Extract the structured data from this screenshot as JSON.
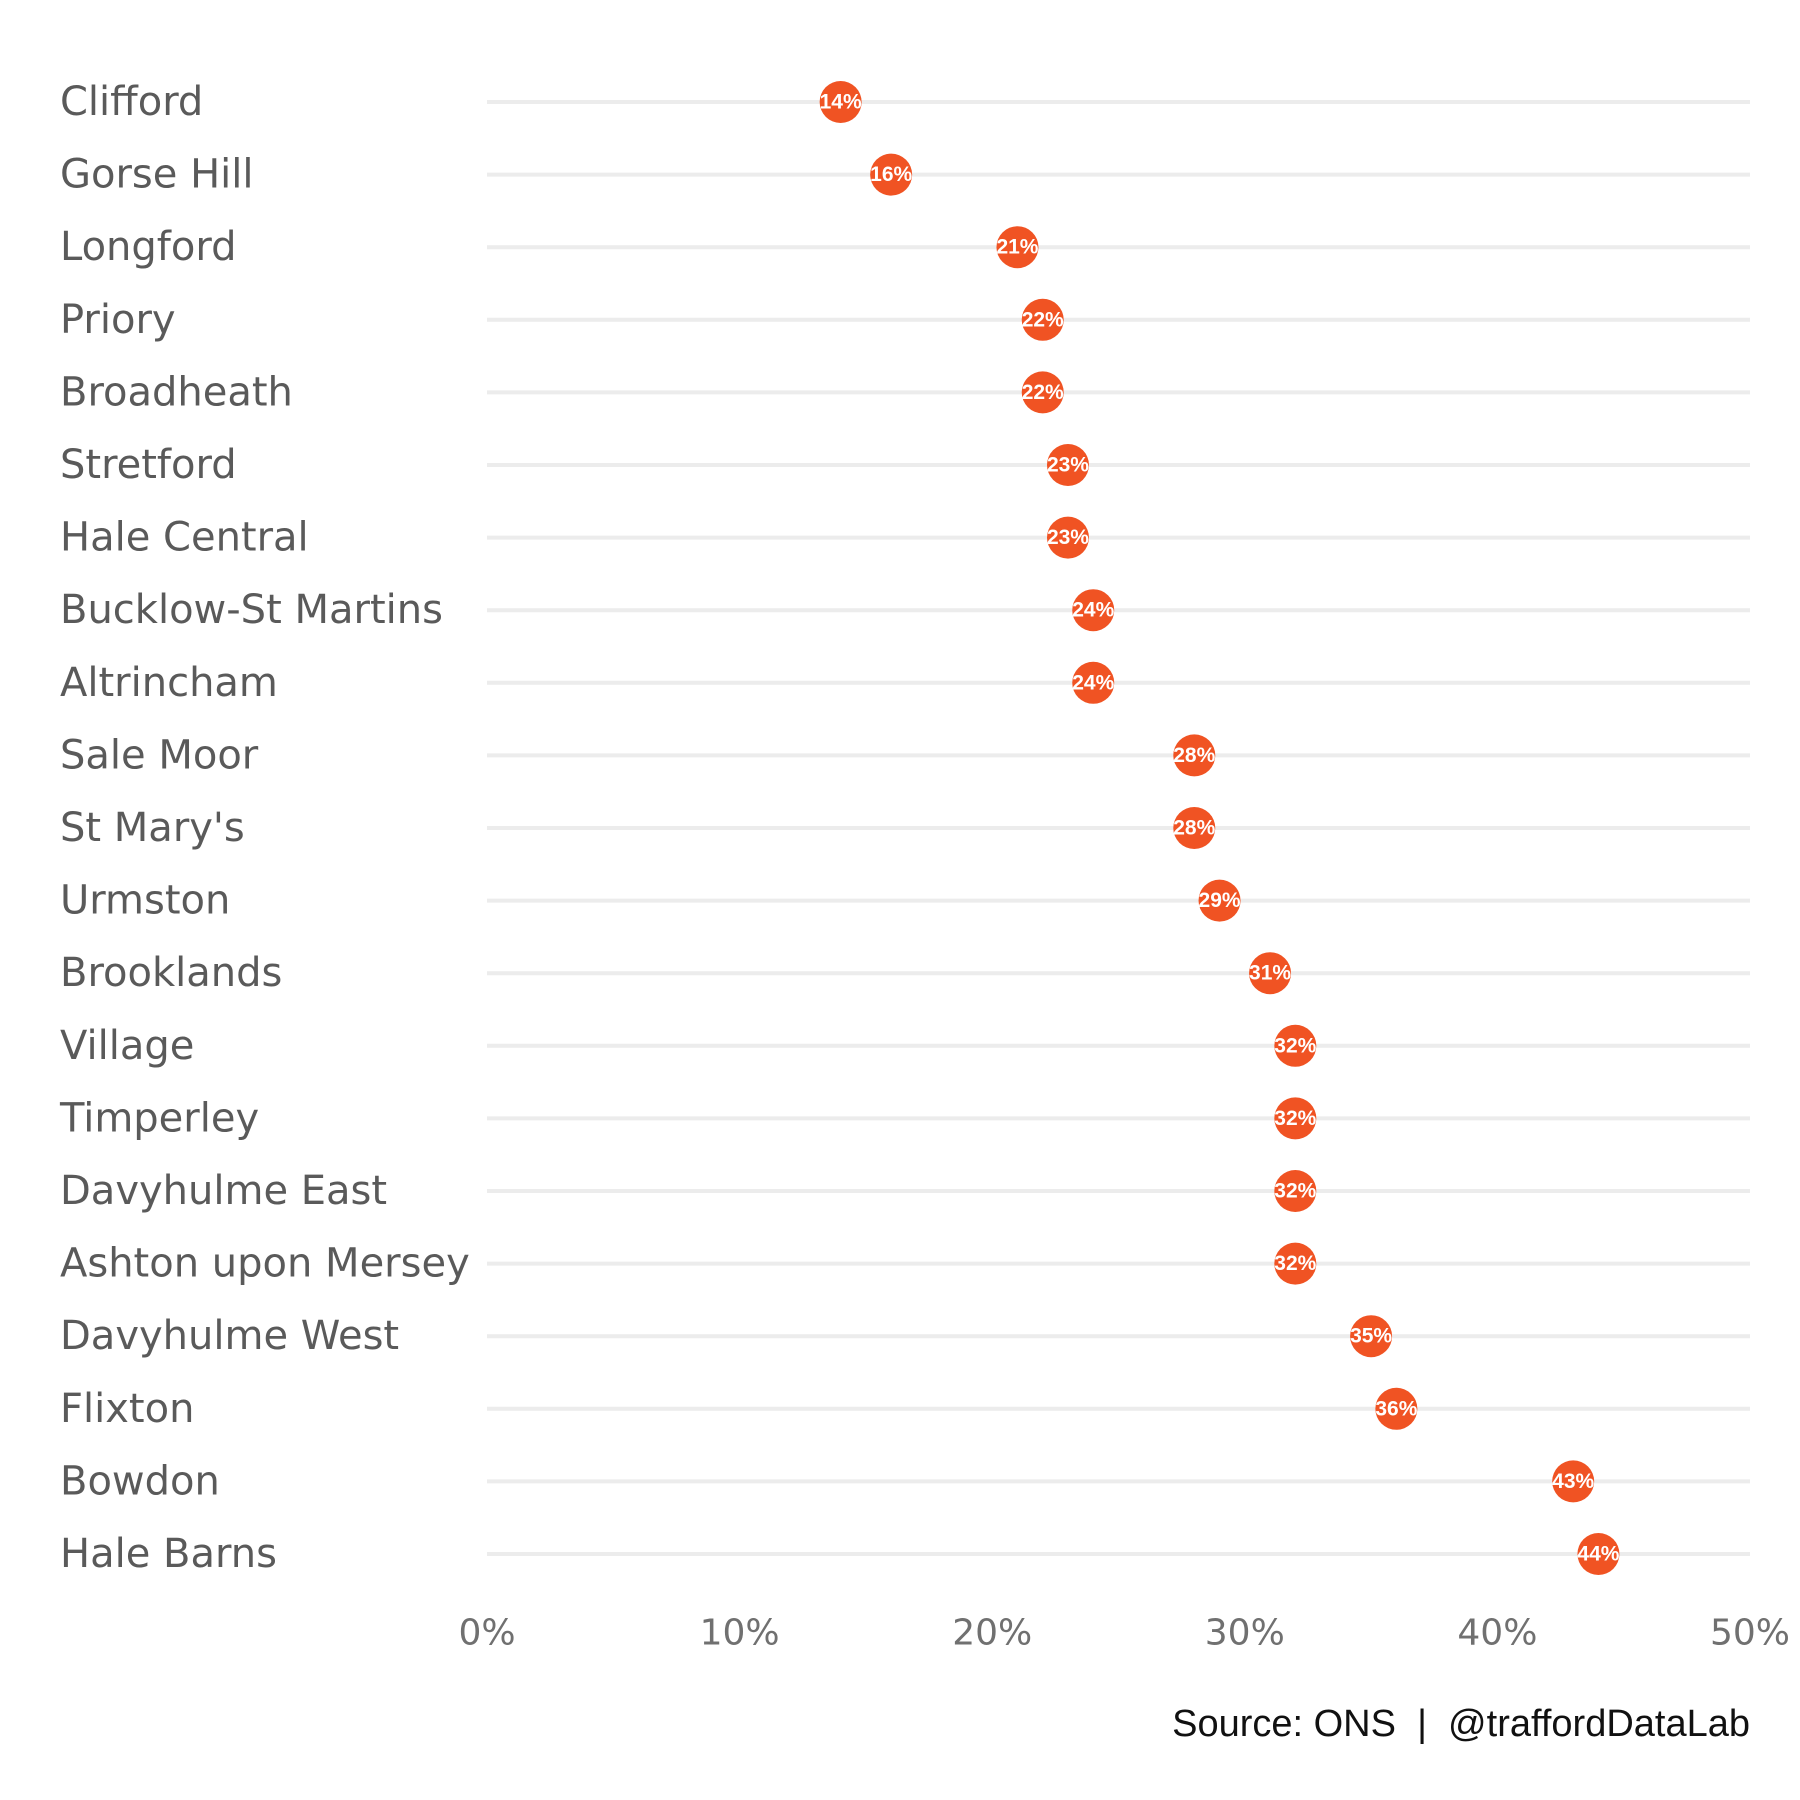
{
  "chart_data": {
    "type": "lollipop",
    "orientation": "horizontal",
    "categories": [
      "Clifford",
      "Gorse Hill",
      "Longford",
      "Priory",
      "Broadheath",
      "Stretford",
      "Hale Central",
      "Bucklow-St Martins",
      "Altrincham",
      "Sale Moor",
      "St Mary's",
      "Urmston",
      "Brooklands",
      "Village",
      "Timperley",
      "Davyhulme East",
      "Ashton upon Mersey",
      "Davyhulme West",
      "Flixton",
      "Bowdon",
      "Hale Barns"
    ],
    "values": [
      14,
      16,
      21,
      22,
      22,
      23,
      23,
      24,
      24,
      28,
      28,
      29,
      31,
      32,
      32,
      32,
      32,
      35,
      36,
      43,
      44
    ],
    "value_labels": [
      "14%",
      "16%",
      "21%",
      "22%",
      "22%",
      "23%",
      "23%",
      "24%",
      "24%",
      "28%",
      "28%",
      "29%",
      "31%",
      "32%",
      "32%",
      "32%",
      "32%",
      "35%",
      "36%",
      "43%",
      "44%"
    ],
    "x_ticks": [
      0,
      10,
      20,
      30,
      40,
      50
    ],
    "x_tick_labels": [
      "0%",
      "10%",
      "20%",
      "30%",
      "40%",
      "50%"
    ],
    "xlim": [
      0,
      50
    ],
    "grid": false,
    "legend": "none",
    "colors": {
      "point": "#f05323",
      "stem": "#ececec",
      "category_text": "#5a5a5a",
      "tick_text": "#707070",
      "caption_text": "#111111"
    }
  },
  "caption": "Source: ONS  |  @traffordDataLab"
}
